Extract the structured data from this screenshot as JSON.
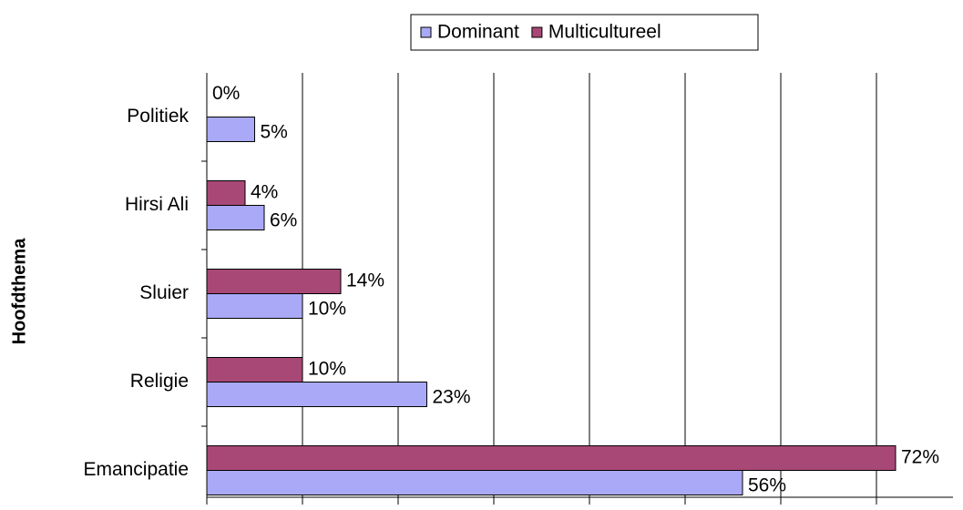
{
  "chart_data": {
    "type": "bar",
    "orientation": "horizontal",
    "y_axis_label": "Hoofdthema",
    "categories": [
      "Politiek",
      "Hirsi Ali",
      "Sluier",
      "Religie",
      "Emancipatie"
    ],
    "series": [
      {
        "name": "Dominant",
        "color": "#a9a9f7",
        "values": [
          5,
          6,
          10,
          23,
          56
        ],
        "value_labels": [
          "5%",
          "6%",
          "10%",
          "23%",
          "56%"
        ]
      },
      {
        "name": "Multicultureel",
        "color": "#a84876",
        "values": [
          0,
          4,
          14,
          10,
          72
        ],
        "value_labels": [
          "0%",
          "4%",
          "14%",
          "10%",
          "72%"
        ]
      }
    ],
    "xlim": [
      0,
      78
    ],
    "xticks": [
      0,
      10,
      20,
      30,
      40,
      50,
      60,
      70
    ],
    "grid": true,
    "legend": "top"
  }
}
